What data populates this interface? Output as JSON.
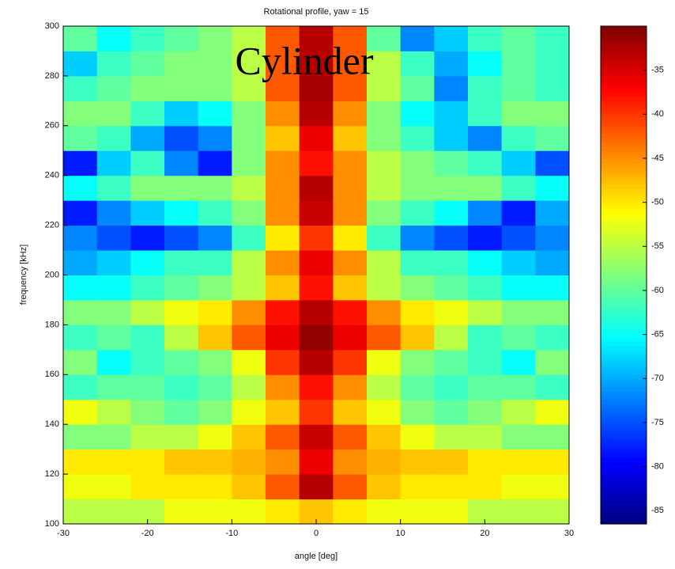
{
  "chart_data": {
    "type": "heatmap",
    "title": "Rotational profile, yaw = 15",
    "annotation": "Cylinder",
    "xlabel": "angle [deg]",
    "ylabel": "frequency [kHz]",
    "x_edges": [
      -30,
      -26,
      -22,
      -18,
      -14,
      -10,
      -6,
      -2,
      2,
      6,
      10,
      14,
      18,
      22,
      26,
      30
    ],
    "y_edges": [
      100,
      110,
      120,
      130,
      140,
      150,
      160,
      170,
      180,
      190,
      200,
      210,
      220,
      230,
      240,
      250,
      260,
      270,
      280,
      290,
      300
    ],
    "z": [
      [
        -55,
        -55,
        -55,
        -52,
        -52,
        -52,
        -50,
        -48,
        -50,
        -52,
        -52,
        -52,
        -55,
        -55,
        -55
      ],
      [
        -52,
        -52,
        -50,
        -50,
        -50,
        -48,
        -42,
        -33,
        -42,
        -48,
        -50,
        -50,
        -50,
        -52,
        -52
      ],
      [
        -50,
        -50,
        -50,
        -48,
        -48,
        -47,
        -45,
        -36,
        -45,
        -47,
        -48,
        -48,
        -50,
        -50,
        -50
      ],
      [
        -58,
        -58,
        -55,
        -55,
        -52,
        -48,
        -42,
        -34,
        -42,
        -48,
        -52,
        -55,
        -55,
        -58,
        -58
      ],
      [
        -52,
        -55,
        -58,
        -60,
        -58,
        -52,
        -48,
        -40,
        -48,
        -52,
        -58,
        -60,
        -58,
        -55,
        -52
      ],
      [
        -62,
        -60,
        -60,
        -62,
        -60,
        -55,
        -45,
        -38,
        -45,
        -55,
        -60,
        -62,
        -60,
        -60,
        -62
      ],
      [
        -58,
        -65,
        -62,
        -60,
        -58,
        -52,
        -40,
        -33,
        -40,
        -52,
        -58,
        -60,
        -62,
        -65,
        -58
      ],
      [
        -62,
        -60,
        -62,
        -55,
        -48,
        -42,
        -36,
        -31,
        -36,
        -42,
        -48,
        -55,
        -62,
        -60,
        -62
      ],
      [
        -58,
        -58,
        -55,
        -52,
        -50,
        -45,
        -38,
        -33,
        -38,
        -45,
        -50,
        -52,
        -55,
        -58,
        -58
      ],
      [
        -65,
        -65,
        -62,
        -60,
        -58,
        -55,
        -48,
        -38,
        -48,
        -55,
        -58,
        -60,
        -62,
        -65,
        -65
      ],
      [
        -70,
        -68,
        -65,
        -62,
        -62,
        -55,
        -45,
        -36,
        -45,
        -55,
        -62,
        -62,
        -65,
        -68,
        -70
      ],
      [
        -72,
        -75,
        -78,
        -75,
        -72,
        -62,
        -50,
        -40,
        -50,
        -62,
        -72,
        -75,
        -78,
        -75,
        -72
      ],
      [
        -78,
        -72,
        -68,
        -65,
        -62,
        -58,
        -45,
        -34,
        -45,
        -58,
        -62,
        -65,
        -72,
        -78,
        -70
      ],
      [
        -65,
        -62,
        -58,
        -58,
        -58,
        -55,
        -45,
        -33,
        -45,
        -55,
        -58,
        -58,
        -58,
        -62,
        -65
      ],
      [
        -78,
        -68,
        -62,
        -72,
        -78,
        -58,
        -45,
        -38,
        -45,
        -55,
        -58,
        -60,
        -62,
        -68,
        -75
      ],
      [
        -60,
        -62,
        -70,
        -75,
        -72,
        -58,
        -48,
        -36,
        -48,
        -58,
        -62,
        -68,
        -72,
        -62,
        -60
      ],
      [
        -58,
        -58,
        -62,
        -68,
        -65,
        -58,
        -45,
        -33,
        -45,
        -58,
        -65,
        -68,
        -62,
        -58,
        -58
      ],
      [
        -62,
        -60,
        -58,
        -58,
        -58,
        -55,
        -42,
        -32,
        -42,
        -55,
        -60,
        -72,
        -62,
        -60,
        -62
      ],
      [
        -68,
        -62,
        -60,
        -58,
        -58,
        -55,
        -42,
        -33,
        -42,
        -55,
        -62,
        -70,
        -65,
        -60,
        -62
      ],
      [
        -60,
        -65,
        -62,
        -60,
        -58,
        -55,
        -42,
        -33,
        -42,
        -60,
        -72,
        -68,
        -62,
        -60,
        -62
      ]
    ],
    "xlim": [
      -30,
      30
    ],
    "xticks": [
      -30,
      -20,
      -10,
      0,
      10,
      20,
      30
    ],
    "ylim": [
      100,
      300
    ],
    "yticks": [
      100,
      120,
      140,
      160,
      180,
      200,
      220,
      240,
      260,
      280,
      300
    ],
    "clim": [
      -86.5,
      -30
    ],
    "cticks": [
      -85,
      -80,
      -75,
      -70,
      -65,
      -60,
      -55,
      -50,
      -45,
      -40,
      -35
    ],
    "colormap": "jet"
  }
}
